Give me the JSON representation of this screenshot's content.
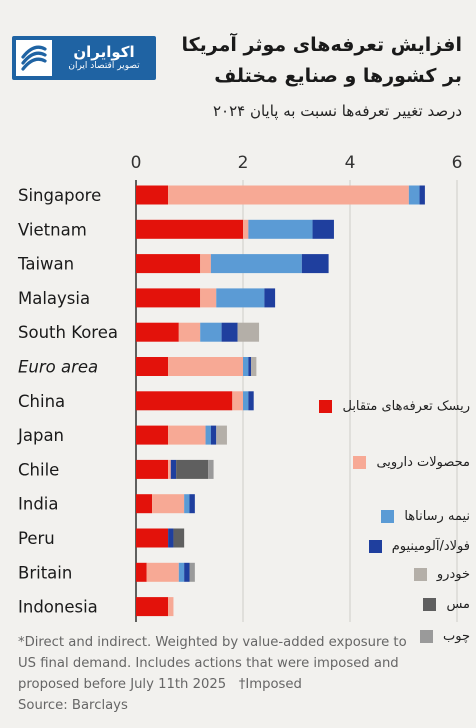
{
  "logo": {
    "name": "اکوایران",
    "tagline": "تصویر اقتصاد ایران"
  },
  "title_line1": "افزایش تعرفه‌های موثر آمریکا",
  "title_line2": "بر کشورها و صنایع مختلف",
  "subtitle": "درصد تغییر تعرفه‌ها نسبت به پایان ۲۰۲۴",
  "footnote": {
    "line1": "*Direct and indirect. Weighted by value-added exposure to",
    "line2": "US final demand. Includes actions that were imposed and",
    "line3": "proposed before July 11th 2025",
    "line3_note": "†Imposed",
    "source": "Source: Barclays"
  },
  "colors": {
    "reciprocal": "#e3120b",
    "pharma": "#f7a995",
    "semis": "#5b9bd5",
    "steel_aluminium": "#1f3f9e",
    "autos": "#b4afa8",
    "copper": "#5f5f5f",
    "lumber": "#9a9a9a"
  },
  "chart_data": {
    "type": "bar",
    "orientation": "horizontal",
    "stacked": true,
    "xlim": [
      0,
      6
    ],
    "xticks": [
      0,
      2,
      4,
      6
    ],
    "categories": [
      "Singapore",
      "Vietnam",
      "Taiwan",
      "Malaysia",
      "South Korea",
      "Euro area",
      "China",
      "Japan",
      "Chile",
      "India",
      "Peru",
      "Britain",
      "Indonesia"
    ],
    "series": [
      {
        "name": "ریسک تعرفه‌های متقابل",
        "color_key": "reciprocal",
        "values": [
          0.6,
          2.0,
          1.2,
          1.2,
          0.8,
          0.6,
          1.8,
          0.6,
          0.6,
          0.3,
          0.6,
          0.2,
          0.6
        ]
      },
      {
        "name": "محصولات دارویی",
        "color_key": "pharma",
        "values": [
          4.5,
          0.1,
          0.2,
          0.3,
          0.4,
          1.4,
          0.2,
          0.7,
          0.05,
          0.6,
          0.0,
          0.6,
          0.1
        ]
      },
      {
        "name": "نیمه رساناها",
        "color_key": "semis",
        "values": [
          0.2,
          1.2,
          1.7,
          0.9,
          0.4,
          0.1,
          0.1,
          0.1,
          0.0,
          0.1,
          0.0,
          0.1,
          0.0
        ]
      },
      {
        "name": "فولاد/آلومینیوم",
        "color_key": "steel_aluminium",
        "values": [
          0.1,
          0.4,
          0.5,
          0.2,
          0.3,
          0.05,
          0.1,
          0.1,
          0.1,
          0.1,
          0.1,
          0.1,
          0.0
        ]
      },
      {
        "name": "خودرو",
        "color_key": "autos",
        "values": [
          0.0,
          0.0,
          0.0,
          0.0,
          0.4,
          0.1,
          0.0,
          0.2,
          0.0,
          0.0,
          0.0,
          0.0,
          0.0
        ]
      },
      {
        "name": "مس",
        "color_key": "copper",
        "values": [
          0.0,
          0.0,
          0.0,
          0.0,
          0.0,
          0.0,
          0.0,
          0.0,
          0.6,
          0.0,
          0.2,
          0.0,
          0.0
        ]
      },
      {
        "name": "چوب",
        "color_key": "lumber",
        "values": [
          0.0,
          0.0,
          0.0,
          0.0,
          0.0,
          0.0,
          0.0,
          0.0,
          0.1,
          0.0,
          0.0,
          0.1,
          0.0
        ]
      }
    ],
    "italic_categories": [
      "Euro area"
    ],
    "grid": true
  }
}
